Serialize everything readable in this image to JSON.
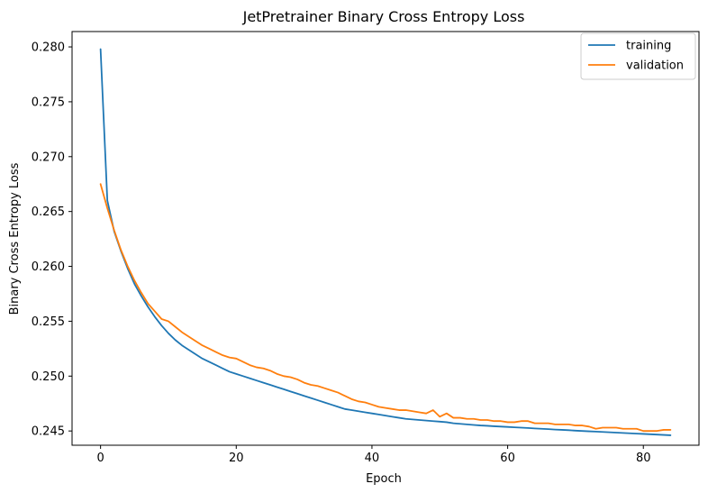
{
  "chart_data": {
    "type": "line",
    "title": "JetPretrainer Binary Cross Entropy Loss",
    "xlabel": "Epoch",
    "ylabel": "Binary Cross Entropy Loss",
    "xlim": [
      -4.2,
      88.2
    ],
    "ylim": [
      0.2437,
      0.2814
    ],
    "xticks": [
      0,
      20,
      40,
      60,
      80
    ],
    "yticks": [
      0.245,
      0.25,
      0.255,
      0.26,
      0.265,
      0.27,
      0.275,
      0.28
    ],
    "ytick_labels": [
      "0.245",
      "0.250",
      "0.255",
      "0.260",
      "0.265",
      "0.270",
      "0.275",
      "0.280"
    ],
    "grid": false,
    "legend_position": "top-right",
    "series": [
      {
        "name": "training",
        "color": "#1f77b4",
        "x": [
          0,
          1,
          2,
          3,
          4,
          5,
          6,
          7,
          8,
          9,
          10,
          11,
          12,
          13,
          14,
          15,
          16,
          17,
          18,
          19,
          20,
          21,
          22,
          23,
          24,
          25,
          26,
          27,
          28,
          29,
          30,
          31,
          32,
          33,
          34,
          35,
          36,
          37,
          38,
          39,
          40,
          41,
          42,
          43,
          44,
          45,
          46,
          47,
          48,
          49,
          50,
          51,
          52,
          53,
          54,
          55,
          56,
          57,
          58,
          59,
          60,
          61,
          62,
          63,
          64,
          65,
          66,
          67,
          68,
          69,
          70,
          71,
          72,
          73,
          74,
          75,
          76,
          77,
          78,
          79,
          80,
          81,
          82,
          83,
          84
        ],
        "values": [
          0.2798,
          0.266,
          0.2632,
          0.2614,
          0.2598,
          0.2584,
          0.2573,
          0.2563,
          0.2554,
          0.2546,
          0.2539,
          0.2533,
          0.2528,
          0.2524,
          0.252,
          0.2516,
          0.2513,
          0.251,
          0.2507,
          0.2504,
          0.2502,
          0.25,
          0.2498,
          0.2496,
          0.2494,
          0.2492,
          0.249,
          0.2488,
          0.2486,
          0.2484,
          0.2482,
          0.248,
          0.2478,
          0.2476,
          0.2474,
          0.2472,
          0.247,
          0.2469,
          0.2468,
          0.2467,
          0.2466,
          0.2465,
          0.2464,
          0.2463,
          0.2462,
          0.2461,
          0.24605,
          0.246,
          0.24595,
          0.2459,
          0.24585,
          0.2458,
          0.2457,
          0.24565,
          0.2456,
          0.24555,
          0.2455,
          0.24547,
          0.24543,
          0.2454,
          0.24537,
          0.24533,
          0.2453,
          0.24527,
          0.24523,
          0.2452,
          0.24517,
          0.24513,
          0.2451,
          0.24507,
          0.24503,
          0.245,
          0.24497,
          0.24494,
          0.24491,
          0.24488,
          0.24485,
          0.24482,
          0.24479,
          0.24476,
          0.24473,
          0.2447,
          0.24467,
          0.24464,
          0.24461
        ]
      },
      {
        "name": "validation",
        "color": "#ff7f0e",
        "x": [
          0,
          1,
          2,
          3,
          4,
          5,
          6,
          7,
          8,
          9,
          10,
          11,
          12,
          13,
          14,
          15,
          16,
          17,
          18,
          19,
          20,
          21,
          22,
          23,
          24,
          25,
          26,
          27,
          28,
          29,
          30,
          31,
          32,
          33,
          34,
          35,
          36,
          37,
          38,
          39,
          40,
          41,
          42,
          43,
          44,
          45,
          46,
          47,
          48,
          49,
          50,
          51,
          52,
          53,
          54,
          55,
          56,
          57,
          58,
          59,
          60,
          61,
          62,
          63,
          64,
          65,
          66,
          67,
          68,
          69,
          70,
          71,
          72,
          73,
          74,
          75,
          76,
          77,
          78,
          79,
          80,
          81,
          82,
          83,
          84
        ],
        "values": [
          0.2675,
          0.2653,
          0.2633,
          0.2615,
          0.26,
          0.2587,
          0.2576,
          0.2566,
          0.2559,
          0.2552,
          0.255,
          0.2545,
          0.254,
          0.2536,
          0.2532,
          0.2528,
          0.2525,
          0.2522,
          0.2519,
          0.2517,
          0.2516,
          0.2513,
          0.251,
          0.2508,
          0.2507,
          0.2505,
          0.2502,
          0.25,
          0.2499,
          0.2497,
          0.2494,
          0.2492,
          0.2491,
          0.2489,
          0.2487,
          0.2485,
          0.2482,
          0.2479,
          0.2477,
          0.2476,
          0.2474,
          0.2472,
          0.2471,
          0.247,
          0.2469,
          0.2469,
          0.2468,
          0.2467,
          0.2466,
          0.2469,
          0.2463,
          0.2466,
          0.2462,
          0.2462,
          0.2461,
          0.2461,
          0.246,
          0.246,
          0.2459,
          0.2459,
          0.2458,
          0.2458,
          0.2459,
          0.2459,
          0.2457,
          0.2457,
          0.2457,
          0.2456,
          0.2456,
          0.2456,
          0.2455,
          0.2455,
          0.2454,
          0.2452,
          0.2453,
          0.2453,
          0.2453,
          0.2452,
          0.2452,
          0.2452,
          0.245,
          0.245,
          0.245,
          0.2451,
          0.2451
        ]
      }
    ]
  }
}
